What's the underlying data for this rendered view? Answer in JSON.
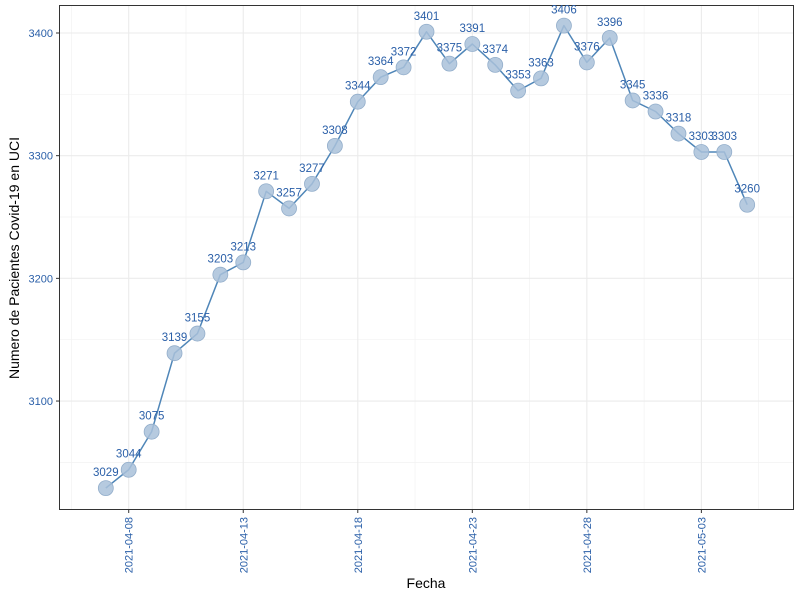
{
  "chart_data": {
    "type": "line",
    "title": "",
    "xlabel": "Fecha",
    "ylabel": "Numero de Pacientes Covid-19 en UCI",
    "x": [
      "2021-04-07",
      "2021-04-08",
      "2021-04-09",
      "2021-04-10",
      "2021-04-11",
      "2021-04-12",
      "2021-04-13",
      "2021-04-14",
      "2021-04-15",
      "2021-04-16",
      "2021-04-17",
      "2021-04-18",
      "2021-04-19",
      "2021-04-20",
      "2021-04-21",
      "2021-04-22",
      "2021-04-23",
      "2021-04-24",
      "2021-04-25",
      "2021-04-26",
      "2021-04-27",
      "2021-04-28",
      "2021-04-29",
      "2021-04-30",
      "2021-05-01",
      "2021-05-02",
      "2021-05-03",
      "2021-05-04",
      "2021-05-05"
    ],
    "values": [
      3029,
      3044,
      3075,
      3139,
      3155,
      3203,
      3213,
      3271,
      3257,
      3277,
      3308,
      3344,
      3364,
      3372,
      3401,
      3375,
      3391,
      3374,
      3353,
      3363,
      3406,
      3376,
      3396,
      3345,
      3336,
      3318,
      3303,
      3303,
      3260
    ],
    "x_ticks": [
      "2021-04-08",
      "2021-04-13",
      "2021-04-18",
      "2021-04-23",
      "2021-04-28",
      "2021-05-03"
    ],
    "y_ticks": [
      3100,
      3200,
      3300,
      3400
    ],
    "ylim": [
      3012,
      3422
    ],
    "xlim": [
      "2021-04-05",
      "2021-05-07"
    ],
    "grid": true,
    "legend": "none",
    "colors": {
      "line": "#4f86b8",
      "point_fill": "#a9c1d9",
      "point_stroke": "#93aecb",
      "label": "#2a5fa8",
      "grid": "#ebebeb",
      "panel_border": "#333333"
    }
  }
}
